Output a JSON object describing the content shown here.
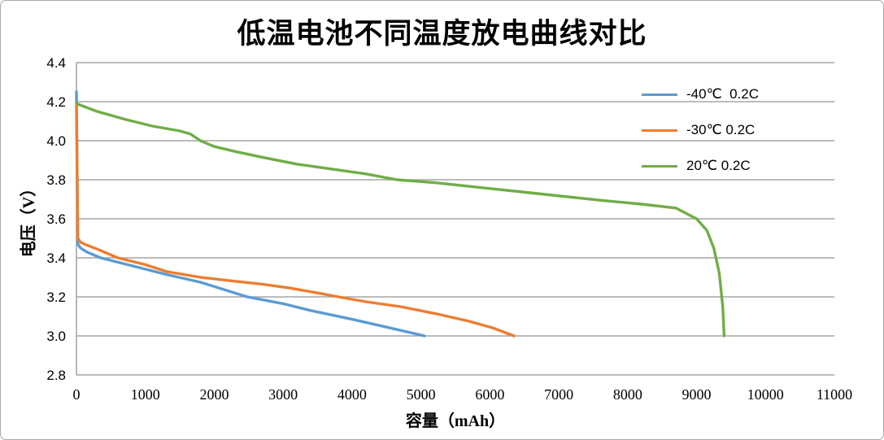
{
  "figure": {
    "background": "#ffffff",
    "border_color": "#a9a9a9"
  },
  "chart_data": {
    "type": "line",
    "title": "低温电池不同温度放电曲线对比",
    "xlabel": "容量（mAh）",
    "ylabel": "电压（V）",
    "xlim": [
      0,
      11000
    ],
    "ylim": [
      2.8,
      4.4
    ],
    "x_ticks": [
      "0",
      "1000",
      "2000",
      "3000",
      "4000",
      "5000",
      "6000",
      "7000",
      "8000",
      "9000",
      "10000",
      "11000"
    ],
    "y_ticks": [
      "4.4",
      "4.2",
      "4.0",
      "3.8",
      "3.6",
      "3.4",
      "3.2",
      "3.0",
      "2.8"
    ],
    "grid": "horizontal-only",
    "gridline_color": "#a6a6a6",
    "axis_line_color": "#a6a6a6",
    "text_color": "#000000",
    "legend_position": "inside-top-right",
    "series": [
      {
        "name": "-40℃  0.2C",
        "color": "#5b9bd5",
        "points": [
          [
            0,
            4.25
          ],
          [
            20,
            3.47
          ],
          [
            60,
            3.45
          ],
          [
            150,
            3.43
          ],
          [
            350,
            3.4
          ],
          [
            800,
            3.36
          ],
          [
            1300,
            3.315
          ],
          [
            1800,
            3.275
          ],
          [
            2480,
            3.2
          ],
          [
            3000,
            3.165
          ],
          [
            3400,
            3.13
          ],
          [
            4000,
            3.085
          ],
          [
            4500,
            3.045
          ],
          [
            5050,
            3.0
          ]
        ]
      },
      {
        "name": "-30℃ 0.2C",
        "color": "#ed7d31",
        "points": [
          [
            0,
            4.18
          ],
          [
            20,
            3.5
          ],
          [
            60,
            3.48
          ],
          [
            150,
            3.465
          ],
          [
            300,
            3.445
          ],
          [
            600,
            3.4
          ],
          [
            1000,
            3.365
          ],
          [
            1300,
            3.33
          ],
          [
            1800,
            3.3
          ],
          [
            2300,
            3.28
          ],
          [
            2700,
            3.265
          ],
          [
            3100,
            3.245
          ],
          [
            3500,
            3.22
          ],
          [
            3800,
            3.2
          ],
          [
            4200,
            3.175
          ],
          [
            4700,
            3.15
          ],
          [
            5200,
            3.115
          ],
          [
            5700,
            3.075
          ],
          [
            6050,
            3.04
          ],
          [
            6350,
            3.0
          ]
        ]
      },
      {
        "name": "20℃ 0.2C",
        "color": "#70ad47",
        "points": [
          [
            0,
            4.19
          ],
          [
            300,
            4.15
          ],
          [
            700,
            4.11
          ],
          [
            1100,
            4.075
          ],
          [
            1500,
            4.05
          ],
          [
            1650,
            4.035
          ],
          [
            1800,
            4.0
          ],
          [
            2000,
            3.97
          ],
          [
            2300,
            3.945
          ],
          [
            2700,
            3.915
          ],
          [
            3200,
            3.88
          ],
          [
            3700,
            3.855
          ],
          [
            4200,
            3.83
          ],
          [
            4650,
            3.8
          ],
          [
            5200,
            3.785
          ],
          [
            6000,
            3.755
          ],
          [
            6800,
            3.725
          ],
          [
            7600,
            3.695
          ],
          [
            8200,
            3.675
          ],
          [
            8700,
            3.655
          ],
          [
            9000,
            3.6
          ],
          [
            9150,
            3.54
          ],
          [
            9250,
            3.45
          ],
          [
            9330,
            3.32
          ],
          [
            9380,
            3.15
          ],
          [
            9400,
            3.0
          ]
        ]
      }
    ]
  }
}
